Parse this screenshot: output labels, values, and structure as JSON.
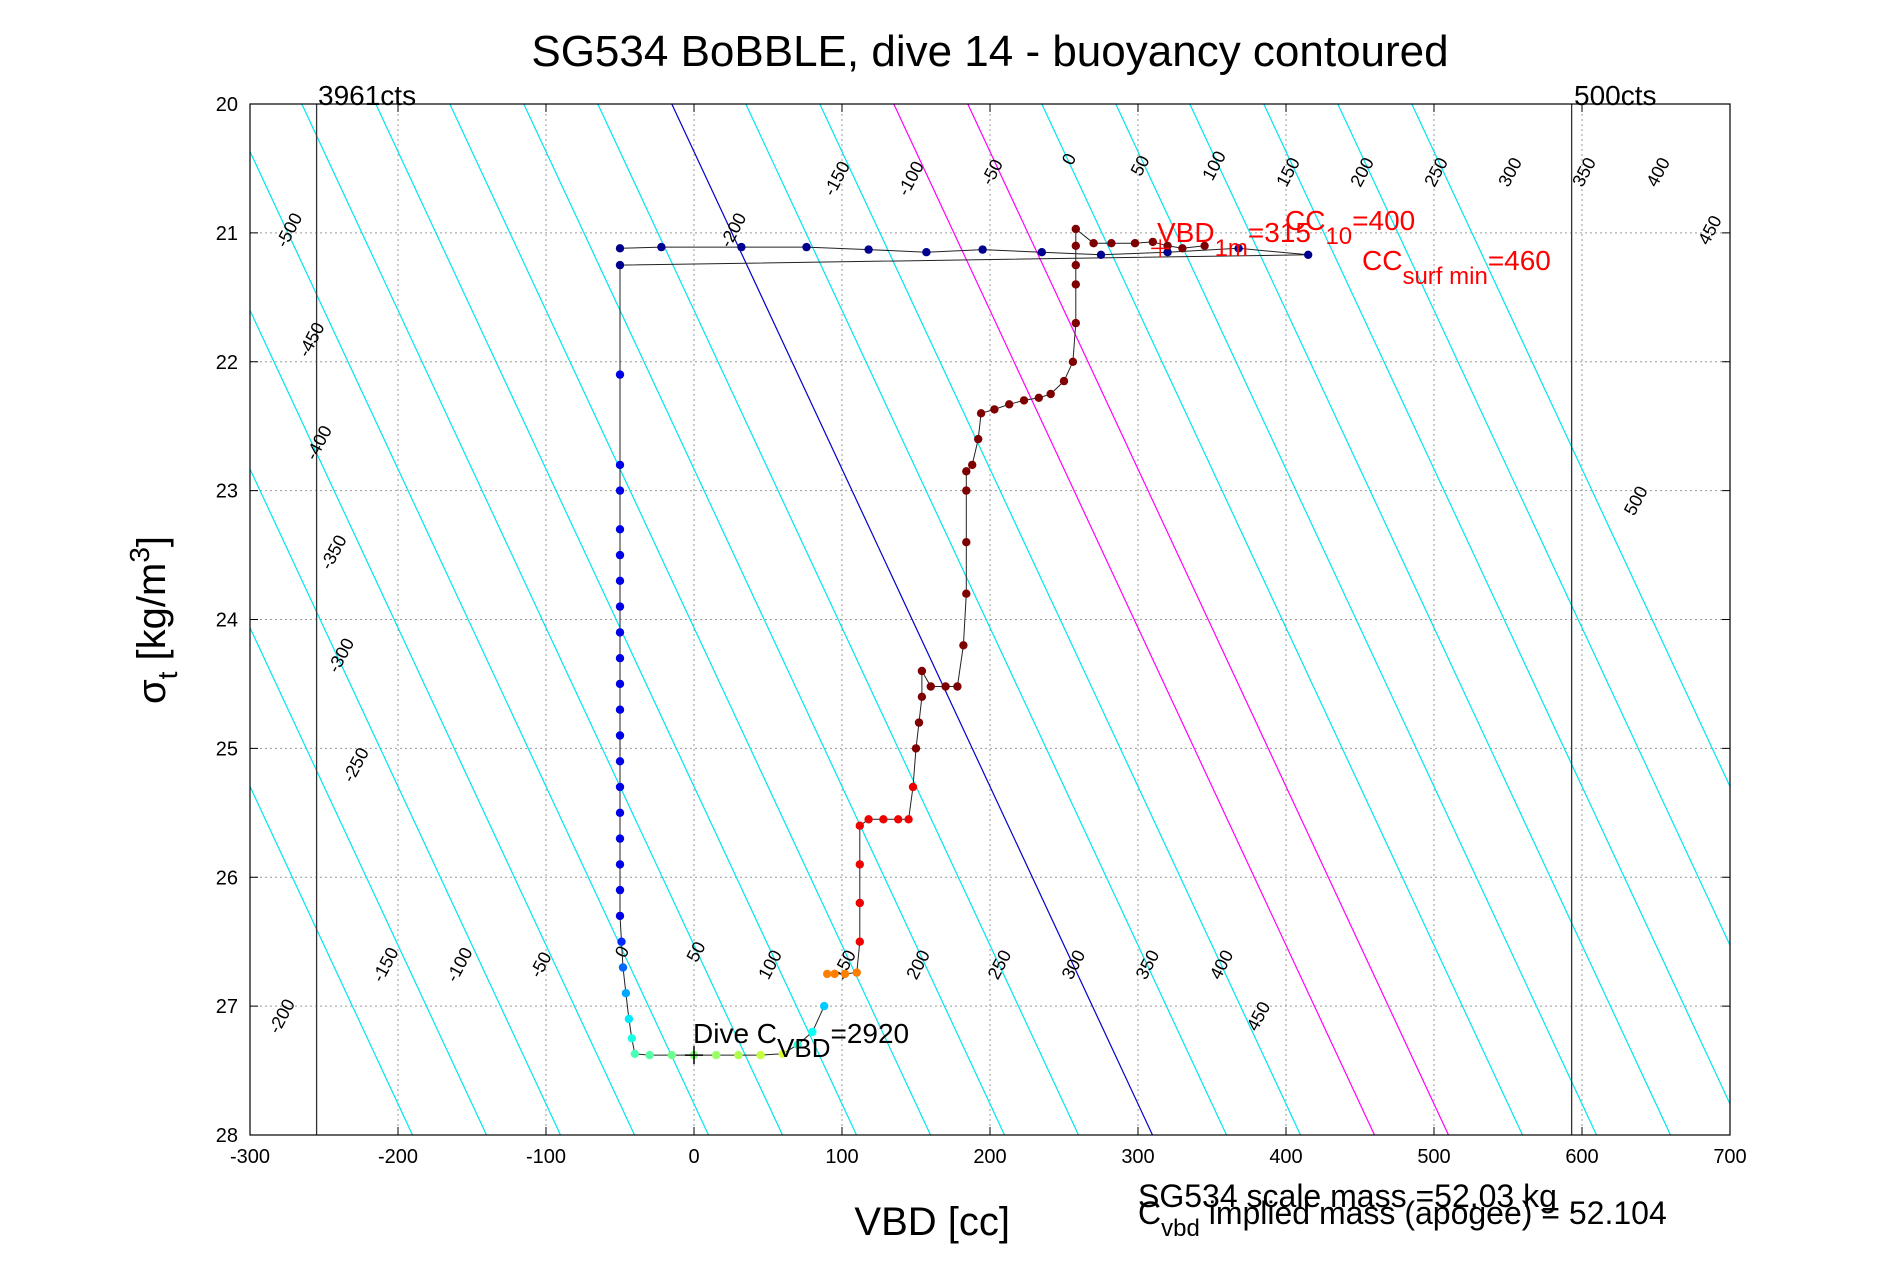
{
  "chart_data": {
    "type": "scatter",
    "title": "SG534 BoBBLE, dive 14 - buoyancy contoured",
    "xlabel": "VBD [cc]",
    "ylabel": {
      "main": "σ",
      "sub": "t",
      "units_pre": " [kg/m",
      "sup": "3",
      "units_post": "]"
    },
    "xlim": [
      -300,
      700
    ],
    "ylim": [
      20,
      28
    ],
    "y_reversed": true,
    "grid": true,
    "xticks": [
      -300,
      -200,
      -100,
      0,
      100,
      200,
      300,
      400,
      500,
      600,
      700
    ],
    "yticks": [
      20,
      21,
      22,
      23,
      24,
      25,
      26,
      27,
      28
    ],
    "count_lines": [
      {
        "label": "3961cts",
        "vbd": -255
      },
      {
        "label": "500cts",
        "vbd": 593
      }
    ],
    "buoyancy_contours": {
      "levels": [
        -500,
        -450,
        -400,
        -350,
        -300,
        -250,
        -200,
        -150,
        -100,
        -50,
        0,
        50,
        100,
        150,
        200,
        250,
        300,
        350,
        400,
        450,
        500
      ],
      "vbd_at_sigma20": -15,
      "cc_per_sigma_unit": 40.6,
      "color": "#00e5ee",
      "zero_line_color": "#0000cc",
      "highlight_levels": [
        150,
        200
      ],
      "highlight_color": "#ff00ff",
      "upper_labels": [
        {
          "text": "-500",
          "vbd": -270,
          "sigma": 21.0
        },
        {
          "text": "-450",
          "vbd": -255,
          "sigma": 21.85
        },
        {
          "text": "-400",
          "vbd": -250,
          "sigma": 22.65
        },
        {
          "text": "-350",
          "vbd": -240,
          "sigma": 23.5
        },
        {
          "text": "-300",
          "vbd": -235,
          "sigma": 24.3
        },
        {
          "text": "-250",
          "vbd": -225,
          "sigma": 25.15
        },
        {
          "text": "-200",
          "vbd": 30,
          "sigma": 21.0
        },
        {
          "text": "-150",
          "vbd": 100,
          "sigma": 20.6
        },
        {
          "text": "-100",
          "vbd": 150,
          "sigma": 20.6
        },
        {
          "text": "-50",
          "vbd": 205,
          "sigma": 20.55
        },
        {
          "text": "0",
          "vbd": 257,
          "sigma": 20.45
        },
        {
          "text": "50",
          "vbd": 305,
          "sigma": 20.5
        },
        {
          "text": "100",
          "vbd": 355,
          "sigma": 20.5
        },
        {
          "text": "150",
          "vbd": 405,
          "sigma": 20.55
        },
        {
          "text": "200",
          "vbd": 455,
          "sigma": 20.55
        },
        {
          "text": "250",
          "vbd": 505,
          "sigma": 20.55
        },
        {
          "text": "300",
          "vbd": 555,
          "sigma": 20.55
        },
        {
          "text": "350",
          "vbd": 605,
          "sigma": 20.55
        },
        {
          "text": "400",
          "vbd": 655,
          "sigma": 20.55
        },
        {
          "text": "450",
          "vbd": 690,
          "sigma": 21.0
        },
        {
          "text": "500",
          "vbd": 640,
          "sigma": 23.1
        }
      ],
      "lower_labels": [
        {
          "text": "-200",
          "vbd": -275,
          "sigma": 27.1
        },
        {
          "text": "-150",
          "vbd": -205,
          "sigma": 26.7
        },
        {
          "text": "-100",
          "vbd": -155,
          "sigma": 26.7
        },
        {
          "text": "-50",
          "vbd": -100,
          "sigma": 26.7
        },
        {
          "text": "0",
          "vbd": -45,
          "sigma": 26.6
        },
        {
          "text": "50",
          "vbd": 5,
          "sigma": 26.6
        },
        {
          "text": "100",
          "vbd": 55,
          "sigma": 26.7
        },
        {
          "text": "150",
          "vbd": 105,
          "sigma": 26.7
        },
        {
          "text": "200",
          "vbd": 155,
          "sigma": 26.7
        },
        {
          "text": "250",
          "vbd": 210,
          "sigma": 26.7
        },
        {
          "text": "300",
          "vbd": 260,
          "sigma": 26.7
        },
        {
          "text": "350",
          "vbd": 310,
          "sigma": 26.7
        },
        {
          "text": "400",
          "vbd": 360,
          "sigma": 26.7
        },
        {
          "text": "450",
          "vbd": 385,
          "sigma": 27.1
        }
      ]
    },
    "series": [
      {
        "phase": "descent",
        "points": [
          [
            -50,
            21.12
          ],
          [
            -22,
            21.11
          ],
          [
            32,
            21.11
          ],
          [
            76,
            21.11
          ],
          [
            118,
            21.13
          ],
          [
            157,
            21.15
          ],
          [
            195,
            21.13
          ],
          [
            235,
            21.15
          ],
          [
            275,
            21.17
          ],
          [
            320,
            21.15
          ],
          [
            368,
            21.12
          ],
          [
            415,
            21.17
          ],
          [
            -50,
            21.25
          ],
          [
            -50,
            22.1
          ],
          [
            -50,
            22.8
          ],
          [
            -50,
            23.0
          ],
          [
            -50,
            23.3
          ],
          [
            -50,
            23.5
          ],
          [
            -50,
            23.7
          ],
          [
            -50,
            23.9
          ],
          [
            -50,
            24.1
          ],
          [
            -50,
            24.3
          ],
          [
            -50,
            24.5
          ],
          [
            -50,
            24.7
          ],
          [
            -50,
            24.9
          ],
          [
            -50,
            25.1
          ],
          [
            -50,
            25.3
          ],
          [
            -50,
            25.5
          ],
          [
            -50,
            25.7
          ],
          [
            -50,
            25.9
          ],
          [
            -50,
            26.1
          ],
          [
            -50,
            26.3
          ],
          [
            -49,
            26.5
          ],
          [
            -48,
            26.7
          ],
          [
            -46,
            26.9
          ],
          [
            -44,
            27.1
          ],
          [
            -42,
            27.25
          ],
          [
            -40,
            27.37
          ],
          [
            -30,
            27.38
          ],
          [
            -15,
            27.38
          ],
          [
            0,
            27.38
          ],
          [
            15,
            27.38
          ],
          [
            30,
            27.38
          ],
          [
            45,
            27.38
          ],
          [
            60,
            27.37
          ],
          [
            70,
            27.3
          ],
          [
            80,
            27.2
          ],
          [
            88,
            27.0
          ]
        ]
      },
      {
        "phase": "ascent",
        "points": [
          [
            90,
            26.75
          ],
          [
            95,
            26.75
          ],
          [
            102,
            26.75
          ],
          [
            110,
            26.74
          ],
          [
            112,
            26.5
          ],
          [
            112,
            26.2
          ],
          [
            112,
            25.9
          ],
          [
            112,
            25.6
          ],
          [
            118,
            25.55
          ],
          [
            128,
            25.55
          ],
          [
            138,
            25.55
          ],
          [
            145,
            25.55
          ],
          [
            148,
            25.3
          ],
          [
            150,
            25.0
          ],
          [
            152,
            24.8
          ],
          [
            154,
            24.6
          ],
          [
            154,
            24.4
          ],
          [
            160,
            24.52
          ],
          [
            170,
            24.52
          ],
          [
            178,
            24.52
          ],
          [
            182,
            24.2
          ],
          [
            184,
            23.8
          ],
          [
            184,
            23.4
          ],
          [
            184,
            23.0
          ],
          [
            184,
            22.85
          ],
          [
            188,
            22.8
          ],
          [
            192,
            22.6
          ],
          [
            194,
            22.4
          ],
          [
            203,
            22.37
          ],
          [
            213,
            22.33
          ],
          [
            223,
            22.3
          ],
          [
            233,
            22.28
          ],
          [
            241,
            22.25
          ],
          [
            250,
            22.15
          ],
          [
            256,
            22.0
          ],
          [
            258,
            21.7
          ],
          [
            258,
            21.4
          ],
          [
            258,
            21.25
          ],
          [
            258,
            21.1
          ],
          [
            258,
            20.97
          ],
          [
            270,
            21.08
          ],
          [
            282,
            21.08
          ],
          [
            298,
            21.08
          ],
          [
            310,
            21.07
          ],
          [
            320,
            21.1
          ],
          [
            330,
            21.12
          ],
          [
            345,
            21.1
          ]
        ]
      }
    ],
    "dive_cvbd_marker": {
      "vbd": 0,
      "sigma": 27.38
    },
    "annotations": {
      "count_low": "3961cts",
      "count_high": "500cts",
      "vbd1m_main": "VBD",
      "vbd1m_sub": "1m",
      "vbd1m_rest": "=315",
      "cc10": "CC",
      "cc10_sub": "10",
      "cc10_rest": "=400",
      "ccsurf": "CC",
      "ccsurf_sub": "surf min",
      "ccsurf_rest": "=460",
      "dive_c_main": "Dive C",
      "dive_c_sub": "VBD",
      "dive_c_rest": "=2920",
      "scale_mass": "SG534 scale mass =52.03 kg",
      "implied_main": "C",
      "implied_sub": "vbd",
      "implied_rest": " implied mass (apogee) = 52.104"
    },
    "colors": {
      "contour": "#00e5ee",
      "zero_line": "#0000cc",
      "magenta": "#ff00ff",
      "annotation_red": "#ff0000",
      "dark_red": "#7f0000",
      "dark_blue": "#00008f"
    }
  }
}
